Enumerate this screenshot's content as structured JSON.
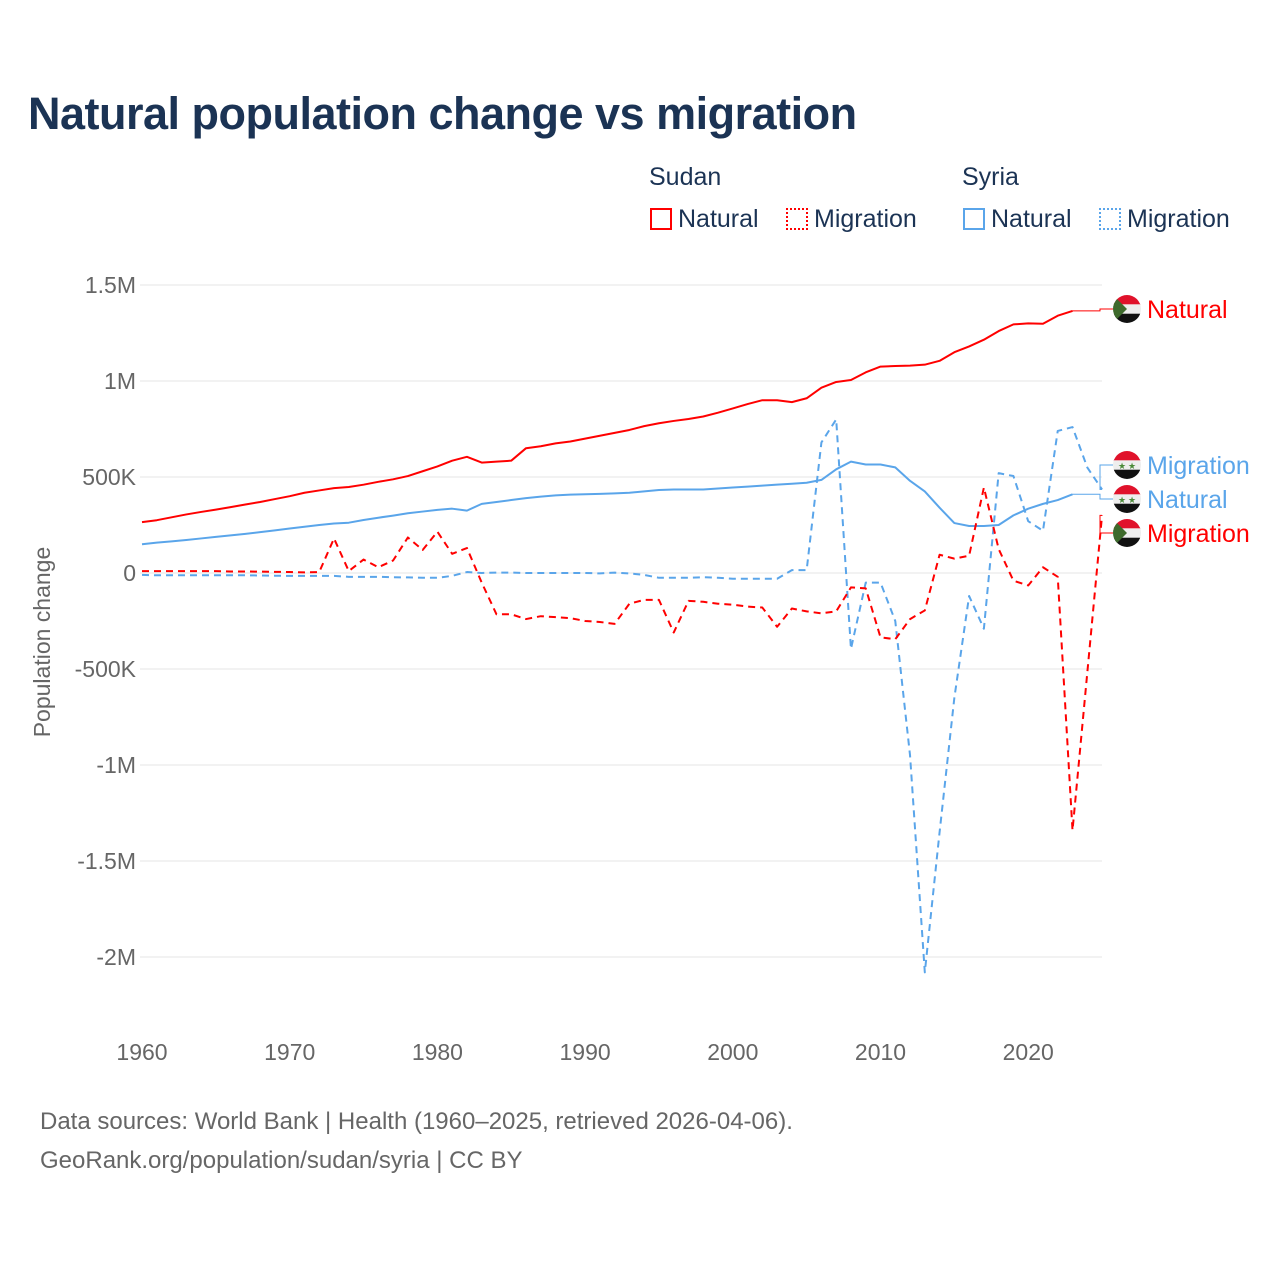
{
  "title": "Natural population change vs migration",
  "source_line1": "Data sources: World Bank | Health (1960–2025, retrieved 2026-04-06).",
  "source_line2": "GeoRank.org/population/sudan/syria | CC BY",
  "legend": {
    "sudan": "Sudan",
    "syria": "Syria",
    "natural": "Natural",
    "migration": "Migration"
  },
  "colors": {
    "sudan": "#ff0000",
    "syria": "#5aa5ea"
  },
  "chart_data": {
    "type": "line",
    "title": "Natural population change vs migration",
    "xlabel": "",
    "ylabel": "Population change",
    "xlim": [
      1960,
      2025
    ],
    "ylim": [
      -2250000,
      1650000
    ],
    "xticks": [
      1960,
      1970,
      1980,
      1990,
      2000,
      2010,
      2020
    ],
    "xtick_labels": [
      "1960",
      "1970",
      "1980",
      "1990",
      "2000",
      "2010",
      "2020"
    ],
    "yticks": [
      1500000,
      1000000,
      500000,
      0,
      -500000,
      -1000000,
      -1500000,
      -2000000
    ],
    "ytick_labels": [
      "1.5M",
      "1M",
      "500K",
      "0",
      "-500K",
      "-1M",
      "-1.5M",
      "-2M"
    ],
    "grid": true,
    "series": [
      {
        "name": "Sudan Natural",
        "country": "Sudan",
        "kind": "Natural",
        "color": "#ff0000",
        "dash": false,
        "start": 1960,
        "values_k": [
          265,
          275,
          290,
          305,
          318,
          330,
          343,
          357,
          370,
          385,
          400,
          418,
          430,
          442,
          448,
          460,
          475,
          488,
          505,
          530,
          555,
          585,
          605,
          575,
          580,
          585,
          650,
          660,
          675,
          685,
          700,
          715,
          730,
          745,
          765,
          780,
          792,
          802,
          815,
          835,
          857,
          880,
          900,
          900,
          890,
          910,
          965,
          995,
          1005,
          1045,
          1075,
          1078,
          1080,
          1085,
          1105,
          1150,
          1180,
          1215,
          1260,
          1295,
          1300,
          1298,
          1340,
          1365
        ],
        "end_label": "Natural"
      },
      {
        "name": "Syria Migration",
        "country": "Syria",
        "kind": "Migration",
        "color": "#5aa5ea",
        "dash": true,
        "start": 1960,
        "values_k": [
          -10,
          -12,
          -12,
          -12,
          -12,
          -12,
          -12,
          -12,
          -13,
          -14,
          -15,
          -15,
          -15,
          -15,
          -20,
          -20,
          -20,
          -22,
          -23,
          -25,
          -25,
          -15,
          5,
          0,
          2,
          2,
          0,
          0,
          0,
          0,
          0,
          -2,
          2,
          -2,
          -10,
          -25,
          -25,
          -25,
          -22,
          -25,
          -30,
          -30,
          -30,
          -30,
          15,
          15,
          680,
          800,
          -395,
          -50,
          -50,
          -250,
          -950,
          -2080,
          -1350,
          -650,
          -120,
          -290,
          520,
          505,
          270,
          220,
          740,
          760,
          550,
          435
        ],
        "end_label": "Migration"
      },
      {
        "name": "Syria Natural",
        "country": "Syria",
        "kind": "Natural",
        "color": "#5aa5ea",
        "dash": false,
        "start": 1960,
        "values_k": [
          150,
          158,
          165,
          172,
          180,
          188,
          196,
          204,
          213,
          222,
          232,
          241,
          250,
          258,
          262,
          276,
          288,
          299,
          311,
          320,
          329,
          335,
          325,
          360,
          370,
          380,
          390,
          398,
          404,
          408,
          410,
          412,
          415,
          418,
          425,
          432,
          435,
          435,
          435,
          440,
          445,
          450,
          455,
          460,
          465,
          470,
          485,
          540,
          580,
          565,
          565,
          550,
          480,
          425,
          340,
          260,
          245,
          245,
          250,
          300,
          335,
          360,
          380,
          410
        ],
        "end_label": "Natural"
      },
      {
        "name": "Sudan Migration",
        "country": "Sudan",
        "kind": "Migration",
        "color": "#ff0000",
        "dash": true,
        "start": 1960,
        "values_k": [
          10,
          10,
          10,
          10,
          10,
          10,
          8,
          8,
          7,
          6,
          5,
          3,
          5,
          180,
          10,
          70,
          30,
          65,
          185,
          120,
          215,
          100,
          130,
          -50,
          -215,
          -215,
          -240,
          -225,
          -230,
          -235,
          -250,
          -255,
          -265,
          -160,
          -140,
          -140,
          -310,
          -145,
          -150,
          -160,
          -165,
          -175,
          -180,
          -280,
          -185,
          -200,
          -210,
          -200,
          -75,
          -80,
          -335,
          -345,
          -240,
          -195,
          95,
          75,
          90,
          445,
          125,
          -40,
          -65,
          30,
          -20,
          -1340,
          -520,
          300
        ],
        "end_label": "Migration"
      }
    ]
  }
}
